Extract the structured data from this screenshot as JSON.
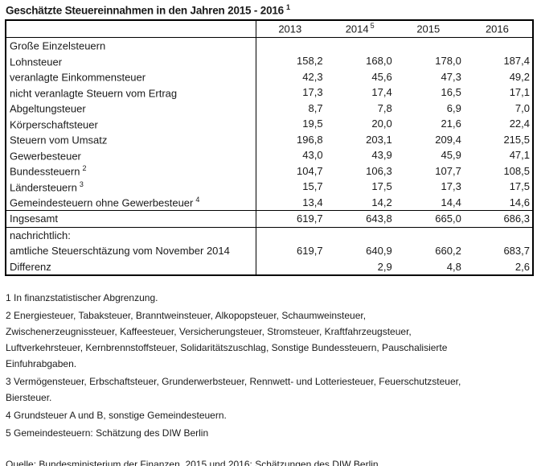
{
  "title": {
    "text": "Geschätzte Steuereinnahmen in den Jahren 2015 - 2016",
    "footnote_ref": "1"
  },
  "table": {
    "years": [
      {
        "label": "2013",
        "ref": ""
      },
      {
        "label": "2014",
        "ref": "5"
      },
      {
        "label": "2015",
        "ref": ""
      },
      {
        "label": "2016",
        "ref": ""
      }
    ],
    "rows": [
      {
        "label": "Große Einzelsteuern",
        "ref": "",
        "values": [
          "",
          "",
          "",
          ""
        ]
      },
      {
        "label": "Lohnsteuer",
        "ref": "",
        "values": [
          "158,2",
          "168,0",
          "178,0",
          "187,4"
        ]
      },
      {
        "label": "veranlagte Einkommensteuer",
        "ref": "",
        "values": [
          "42,3",
          "45,6",
          "47,3",
          "49,2"
        ]
      },
      {
        "label": "nicht veranlagte Steuern vom Ertrag",
        "ref": "",
        "values": [
          "17,3",
          "17,4",
          "16,5",
          "17,1"
        ]
      },
      {
        "label": "Abgeltungsteuer",
        "ref": "",
        "values": [
          "8,7",
          "7,8",
          "6,9",
          "7,0"
        ]
      },
      {
        "label": "Körperschaftsteuer",
        "ref": "",
        "values": [
          "19,5",
          "20,0",
          "21,6",
          "22,4"
        ]
      },
      {
        "label": "Steuern vom Umsatz",
        "ref": "",
        "values": [
          "196,8",
          "203,1",
          "209,4",
          "215,5"
        ]
      },
      {
        "label": "Gewerbesteuer",
        "ref": "",
        "values": [
          "43,0",
          "43,9",
          "45,9",
          "47,1"
        ]
      },
      {
        "label": "Bundessteuern",
        "ref": "2",
        "values": [
          "104,7",
          "106,3",
          "107,7",
          "108,5"
        ]
      },
      {
        "label": "Ländersteuern",
        "ref": "3",
        "values": [
          "15,7",
          "17,5",
          "17,3",
          "17,5"
        ]
      },
      {
        "label": "Gemeindesteuern ohne Gewerbesteuer",
        "ref": "4",
        "values": [
          "13,4",
          "14,2",
          "14,4",
          "14,6"
        ]
      }
    ],
    "total": {
      "label": "Ingsesamt",
      "values": [
        "619,7",
        "643,8",
        "665,0",
        "686,3"
      ]
    },
    "memo": [
      {
        "label": "nachrichtlich:",
        "values": [
          "",
          "",
          "",
          ""
        ]
      },
      {
        "label": "amtliche Steuerschtäzung vom November 2014",
        "values": [
          "619,7",
          "640,9",
          "660,2",
          "683,7"
        ]
      },
      {
        "label": "Differenz",
        "values": [
          "",
          "2,9",
          "4,8",
          "2,6"
        ]
      }
    ]
  },
  "footnotes": [
    {
      "lines": [
        "1 In finanzstatistischer Abgrenzung."
      ]
    },
    {
      "lines": [
        "2 Energiesteuer, Tabaksteuer, Branntweinsteuer, Alkopopsteuer, Schaumweinsteuer,",
        "Zwischenerzeugnissteuer, Kaffeesteuer, Versicherungsteuer, Stromsteuer, Kraftfahrzeugsteuer,",
        "Luftverkehrsteuer, Kernbrennstoffsteuer, Solidaritätszuschlag, Sonstige Bundessteuern, Pauschalisierte",
        "Einfuhrabgaben."
      ]
    },
    {
      "lines": [
        "3 Vermögensteuer, Erbschaftsteuer, Grunderwerbsteuer, Rennwett- und Lotteriesteuer, Feuerschutzsteuer,",
        "Biersteuer."
      ]
    },
    {
      "lines": [
        "4 Grundsteuer A und B, sonstige Gemeindesteuern."
      ]
    },
    {
      "lines": [
        "5 Gemeindesteuern: Schätzung des DIW Berlin"
      ]
    }
  ],
  "source": "Quelle: Bundesministerium der Finanzen, 2015 und 2016: Schätzungen des DIW Berlin"
}
